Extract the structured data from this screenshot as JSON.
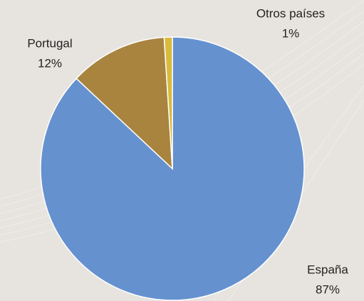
{
  "chart_data": {
    "type": "pie",
    "categories": [
      "España",
      "Portugal",
      "Otros países"
    ],
    "values": [
      87,
      12,
      1
    ],
    "value_labels": [
      "87%",
      "12%",
      "1%"
    ],
    "colors": [
      "#6591cf",
      "#a8843f",
      "#d8bb3d"
    ]
  }
}
